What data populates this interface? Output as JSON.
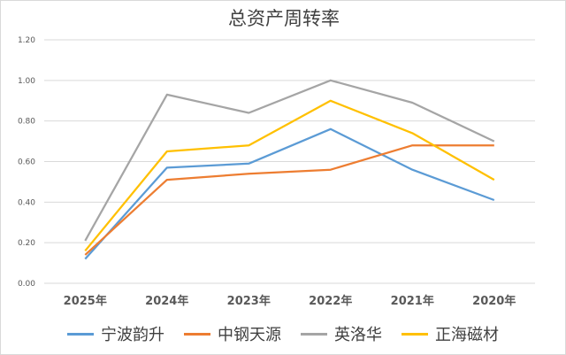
{
  "chart_data": {
    "type": "line",
    "title": "总资产周转率",
    "categories": [
      "2025年",
      "2024年",
      "2023年",
      "2022年",
      "2021年",
      "2020年"
    ],
    "ylim": [
      0,
      1.2
    ],
    "yticks": [
      "0.00",
      "0.20",
      "0.40",
      "0.60",
      "0.80",
      "1.00",
      "1.20"
    ],
    "grid": true,
    "legend_position": "bottom",
    "series": [
      {
        "name": "宁波韵升",
        "color": "#5b9bd5",
        "values": [
          0.12,
          0.57,
          0.59,
          0.76,
          0.56,
          0.41
        ]
      },
      {
        "name": "中钢天源",
        "color": "#ed7d31",
        "values": [
          0.14,
          0.51,
          0.54,
          0.56,
          0.68,
          0.68
        ]
      },
      {
        "name": "英洛华",
        "color": "#a5a5a5",
        "values": [
          0.21,
          0.93,
          0.84,
          1.0,
          0.89,
          0.7
        ]
      },
      {
        "name": "正海磁材",
        "color": "#ffc000",
        "values": [
          0.16,
          0.65,
          0.68,
          0.9,
          0.74,
          0.51
        ]
      }
    ]
  }
}
